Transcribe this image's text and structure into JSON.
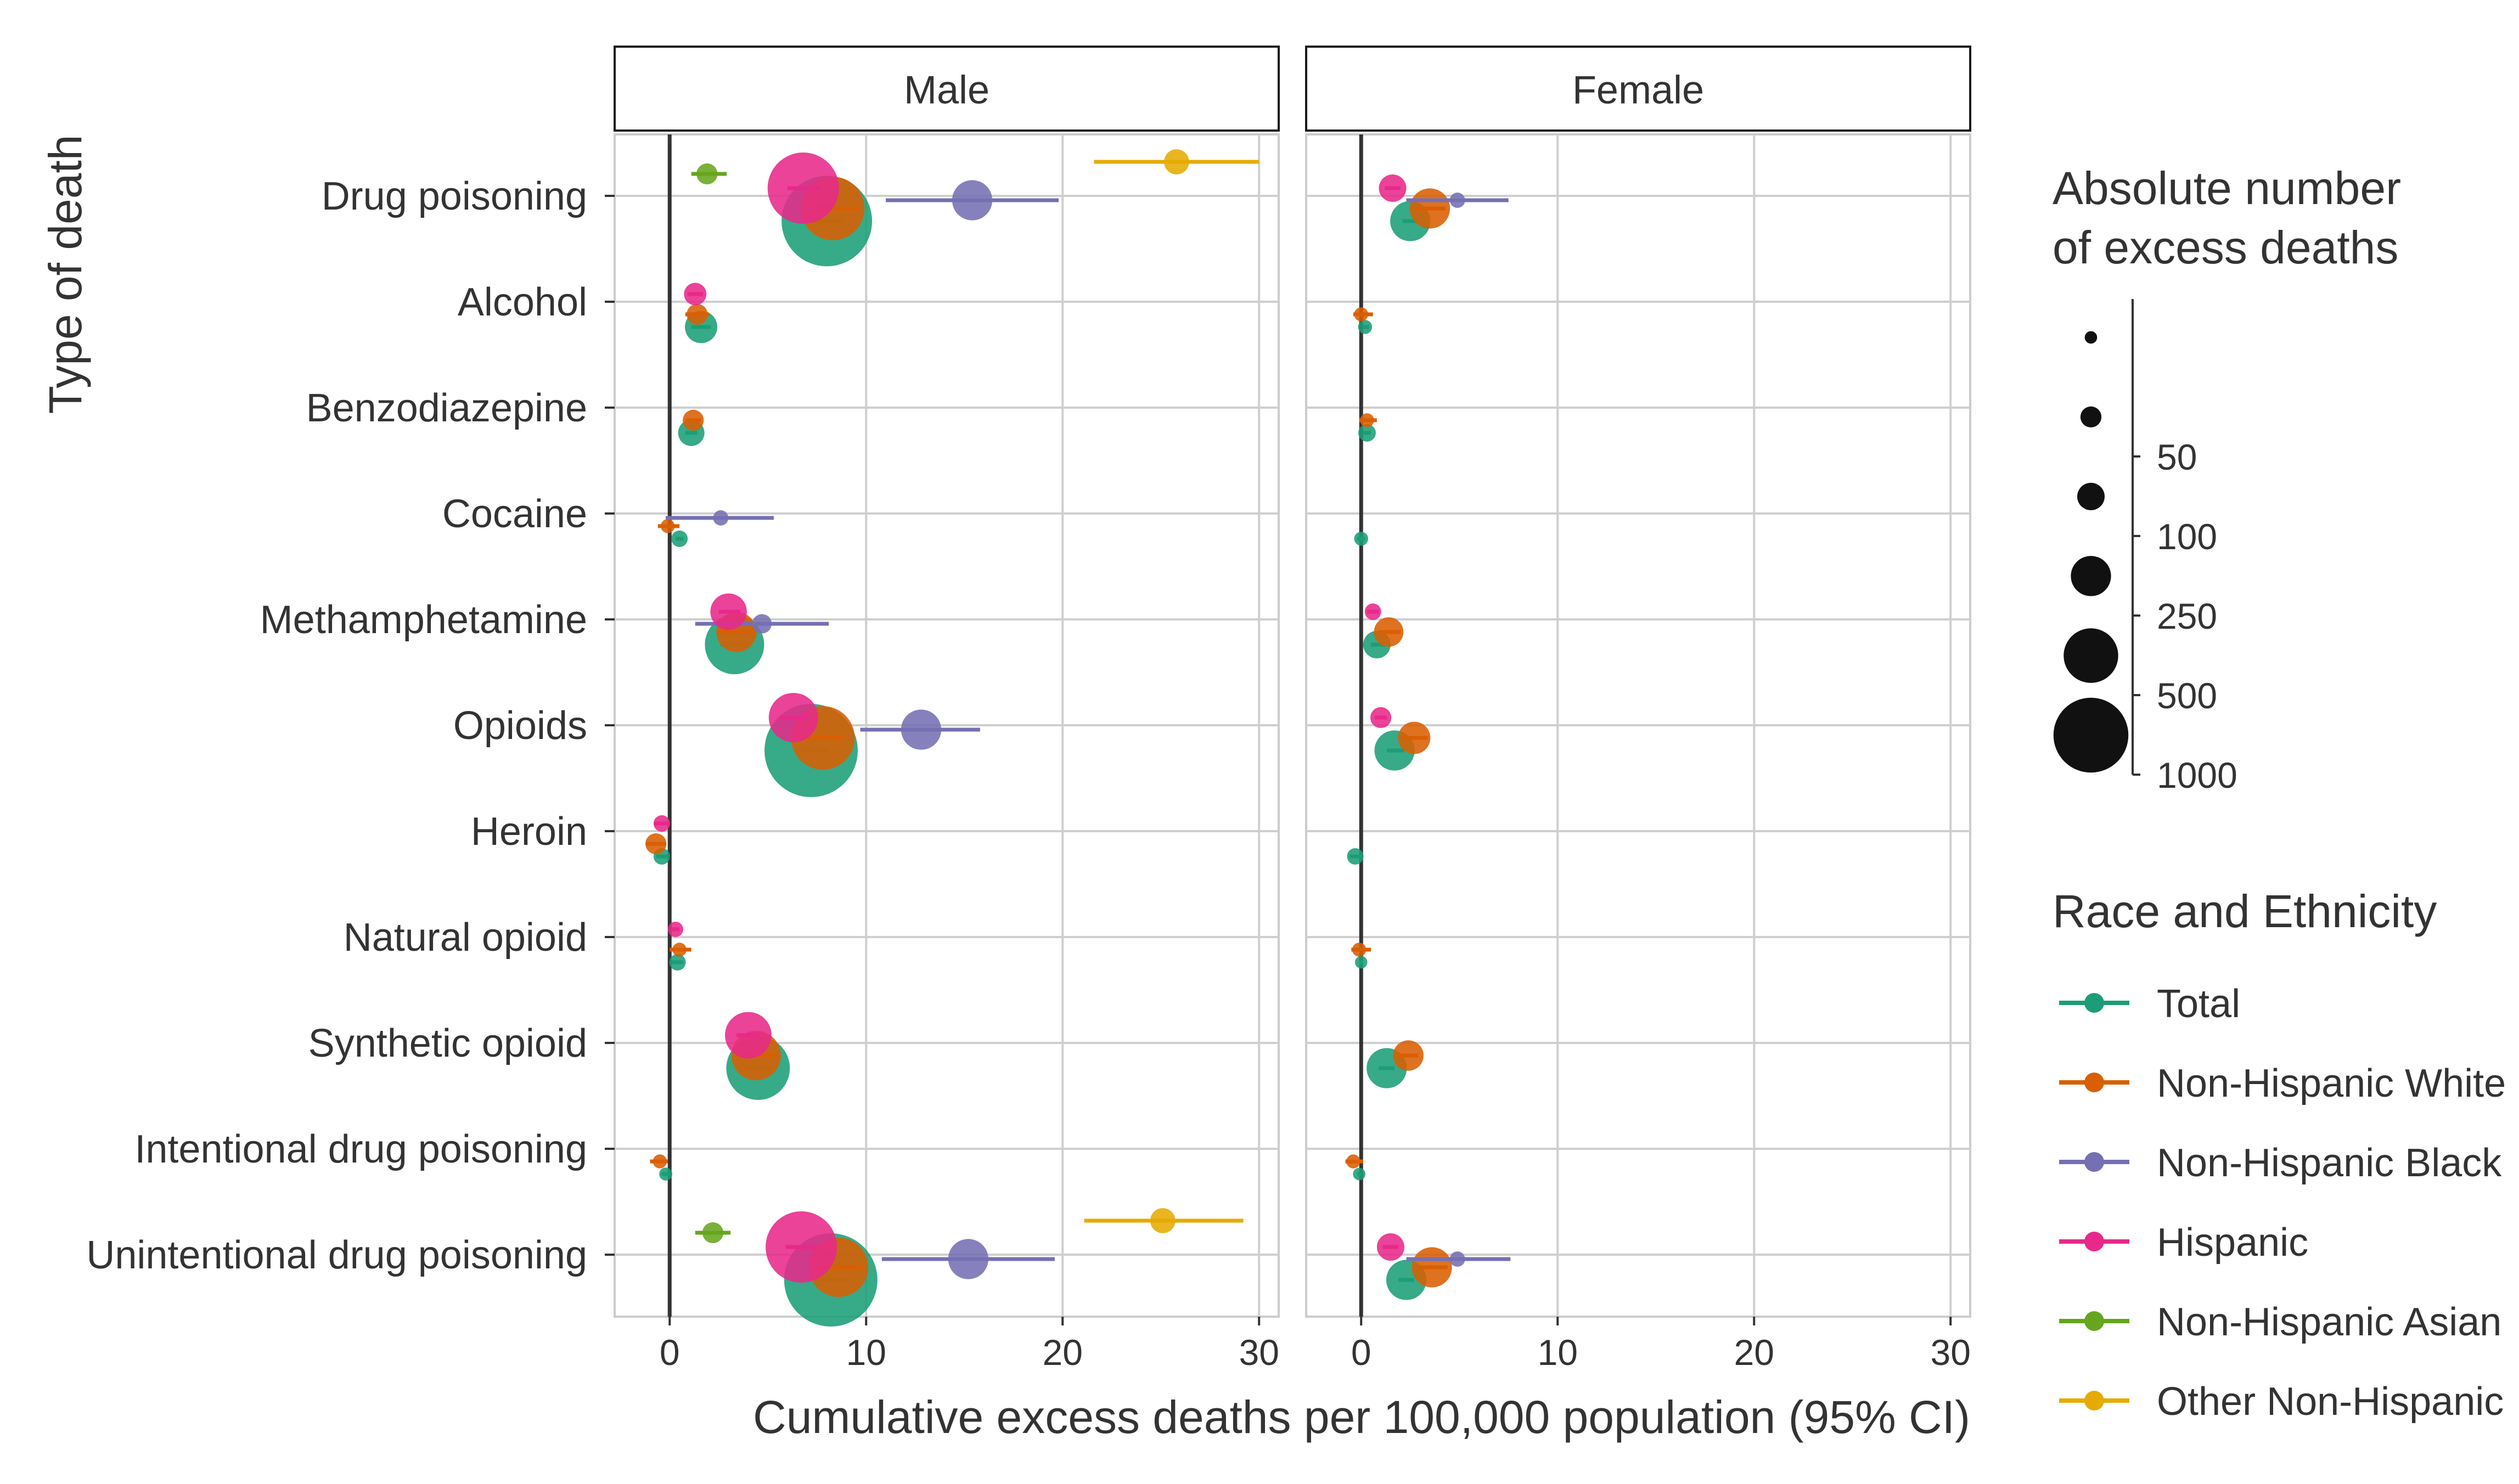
{
  "chart_data": {
    "type": "scatter",
    "y_axis_title": "Type of death",
    "x_axis_title": "Cumulative excess deaths per 100,000 population (95% CI)",
    "xlim": [
      -2.8,
      31
    ],
    "x_ticks": [
      0,
      10,
      20,
      30
    ],
    "grid": true,
    "legend_placement": "right",
    "categories": [
      "Drug poisoning",
      "Alcohol",
      "Benzodiazepine",
      "Cocaine",
      "Methamphetamine",
      "Opioids",
      "Heroin",
      "Natural opioid",
      "Synthetic opioid",
      "Intentional drug poisoning",
      "Unintentional drug poisoning"
    ],
    "size_legend": {
      "title_lines": [
        "Absolute number",
        "of excess deaths"
      ],
      "breaks": [
        {
          "label": "",
          "value": 10
        },
        {
          "label": "50",
          "value": 50
        },
        {
          "label": "100",
          "value": 100
        },
        {
          "label": "250",
          "value": 250
        },
        {
          "label": "500",
          "value": 500
        },
        {
          "label": "1000",
          "value": 1000
        }
      ]
    },
    "color_legend": {
      "title": "Race and Ethnicity",
      "groups": [
        {
          "name": "Total",
          "color": "#1b9e77"
        },
        {
          "name": "Non-Hispanic White",
          "color": "#d95f02"
        },
        {
          "name": "Non-Hispanic Black",
          "color": "#7570b3"
        },
        {
          "name": "Hispanic",
          "color": "#e7298a"
        },
        {
          "name": "Non-Hispanic Asian",
          "color": "#66a61e"
        },
        {
          "name": "Other Non-Hispanic",
          "color": "#e6ab02"
        }
      ]
    },
    "panels": [
      {
        "label": "Male",
        "series": [
          {
            "group": "Total",
            "points": [
              {
                "category": "Drug poisoning",
                "x": 8.0,
                "lo": 7.2,
                "hi": 8.8,
                "n": 1500
              },
              {
                "category": "Alcohol",
                "x": 1.6,
                "lo": 1.1,
                "hi": 2.1,
                "n": 150
              },
              {
                "category": "Benzodiazepine",
                "x": 1.1,
                "lo": 0.8,
                "hi": 1.4,
                "n": 90
              },
              {
                "category": "Cocaine",
                "x": 0.5,
                "lo": 0.3,
                "hi": 0.7,
                "n": 25
              },
              {
                "category": "Methamphetamine",
                "x": 3.3,
                "lo": 2.6,
                "hi": 4.0,
                "n": 600
              },
              {
                "category": "Opioids",
                "x": 7.2,
                "lo": 6.4,
                "hi": 8.0,
                "n": 1600
              },
              {
                "category": "Heroin",
                "x": -0.4,
                "lo": -0.7,
                "hi": -0.1,
                "n": 25
              },
              {
                "category": "Natural opioid",
                "x": 0.4,
                "lo": 0.1,
                "hi": 0.7,
                "n": 25
              },
              {
                "category": "Synthetic opioid",
                "x": 4.5,
                "lo": 3.8,
                "hi": 5.2,
                "n": 700
              },
              {
                "category": "Intentional drug poisoning",
                "x": -0.2,
                "lo": -0.4,
                "hi": 0.0,
                "n": 12
              },
              {
                "category": "Unintentional drug poisoning",
                "x": 8.2,
                "lo": 7.4,
                "hi": 9.0,
                "n": 1600
              }
            ]
          },
          {
            "group": "Non-Hispanic White",
            "points": [
              {
                "category": "Drug poisoning",
                "x": 8.3,
                "lo": 7.2,
                "hi": 9.6,
                "n": 700
              },
              {
                "category": "Alcohol",
                "x": 1.4,
                "lo": 0.8,
                "hi": 2.0,
                "n": 50
              },
              {
                "category": "Benzodiazepine",
                "x": 1.2,
                "lo": 0.8,
                "hi": 1.6,
                "n": 50
              },
              {
                "category": "Cocaine",
                "x": -0.1,
                "lo": -0.6,
                "hi": 0.5,
                "n": 15
              },
              {
                "category": "Methamphetamine",
                "x": 3.4,
                "lo": 2.4,
                "hi": 4.4,
                "n": 250
              },
              {
                "category": "Opioids",
                "x": 7.8,
                "lo": 6.8,
                "hi": 8.9,
                "n": 700
              },
              {
                "category": "Heroin",
                "x": -0.7,
                "lo": -1.2,
                "hi": -0.2,
                "n": 50
              },
              {
                "category": "Natural opioid",
                "x": 0.5,
                "lo": 0.0,
                "hi": 1.1,
                "n": 15
              },
              {
                "category": "Synthetic opioid",
                "x": 4.4,
                "lo": 3.4,
                "hi": 5.5,
                "n": 400
              },
              {
                "category": "Intentional drug poisoning",
                "x": -0.5,
                "lo": -1.0,
                "hi": -0.1,
                "n": 15
              },
              {
                "category": "Unintentional drug poisoning",
                "x": 8.6,
                "lo": 7.5,
                "hi": 9.8,
                "n": 600
              }
            ]
          },
          {
            "group": "Non-Hispanic Black",
            "points": [
              {
                "category": "Drug poisoning",
                "x": 15.4,
                "lo": 11.0,
                "hi": 19.8,
                "n": 250
              },
              {
                "category": "Cocaine",
                "x": 2.6,
                "lo": -0.2,
                "hi": 5.3,
                "n": 20
              },
              {
                "category": "Methamphetamine",
                "x": 4.7,
                "lo": 1.3,
                "hi": 8.1,
                "n": 40
              },
              {
                "category": "Opioids",
                "x": 12.8,
                "lo": 9.7,
                "hi": 15.8,
                "n": 250
              },
              {
                "category": "Unintentional drug poisoning",
                "x": 15.2,
                "lo": 10.8,
                "hi": 19.6,
                "n": 250
              }
            ]
          },
          {
            "group": "Hispanic",
            "points": [
              {
                "category": "Drug poisoning",
                "x": 6.8,
                "lo": 6.0,
                "hi": 7.6,
                "n": 900
              },
              {
                "category": "Alcohol",
                "x": 1.3,
                "lo": 0.9,
                "hi": 1.7,
                "n": 60
              },
              {
                "category": "Methamphetamine",
                "x": 3.0,
                "lo": 2.5,
                "hi": 3.6,
                "n": 200
              },
              {
                "category": "Opioids",
                "x": 6.3,
                "lo": 5.6,
                "hi": 7.0,
                "n": 400
              },
              {
                "category": "Heroin",
                "x": -0.4,
                "lo": -0.8,
                "hi": 0.0,
                "n": 25
              },
              {
                "category": "Natural opioid",
                "x": 0.3,
                "lo": 0.1,
                "hi": 0.5,
                "n": 20
              },
              {
                "category": "Synthetic opioid",
                "x": 4.0,
                "lo": 3.4,
                "hi": 4.6,
                "n": 350
              },
              {
                "category": "Unintentional drug poisoning",
                "x": 6.7,
                "lo": 5.9,
                "hi": 7.5,
                "n": 900
              }
            ]
          },
          {
            "group": "Non-Hispanic Asian",
            "points": [
              {
                "category": "Drug poisoning",
                "x": 1.9,
                "lo": 1.1,
                "hi": 2.9,
                "n": 50
              },
              {
                "category": "Unintentional drug poisoning",
                "x": 2.2,
                "lo": 1.3,
                "hi": 3.1,
                "n": 50
              }
            ]
          },
          {
            "group": "Other Non-Hispanic",
            "points": [
              {
                "category": "Drug poisoning",
                "x": 25.8,
                "lo": 21.6,
                "hi": 30.0,
                "n": 80
              },
              {
                "category": "Unintentional drug poisoning",
                "x": 25.1,
                "lo": 21.1,
                "hi": 29.2,
                "n": 80
              }
            ]
          }
        ]
      },
      {
        "label": "Female",
        "series": [
          {
            "group": "Total",
            "points": [
              {
                "category": "Drug poisoning",
                "x": 2.5,
                "lo": 2.1,
                "hi": 2.9,
                "n": 250
              },
              {
                "category": "Alcohol",
                "x": 0.2,
                "lo": 0.1,
                "hi": 0.4,
                "n": 15
              },
              {
                "category": "Benzodiazepine",
                "x": 0.3,
                "lo": 0.1,
                "hi": 0.5,
                "n": 30
              },
              {
                "category": "Cocaine",
                "x": 0.0,
                "lo": -0.2,
                "hi": 0.2,
                "n": 15
              },
              {
                "category": "Methamphetamine",
                "x": 0.8,
                "lo": 0.5,
                "hi": 1.2,
                "n": 100
              },
              {
                "category": "Opioids",
                "x": 1.7,
                "lo": 1.3,
                "hi": 2.2,
                "n": 250
              },
              {
                "category": "Heroin",
                "x": -0.3,
                "lo": -0.6,
                "hi": 0.0,
                "n": 25
              },
              {
                "category": "Natural opioid",
                "x": 0.0,
                "lo": -0.1,
                "hi": 0.1,
                "n": 10
              },
              {
                "category": "Synthetic opioid",
                "x": 1.3,
                "lo": 0.9,
                "hi": 1.7,
                "n": 250
              },
              {
                "category": "Intentional drug poisoning",
                "x": -0.1,
                "lo": -0.2,
                "hi": 0.0,
                "n": 10
              },
              {
                "category": "Unintentional drug poisoning",
                "x": 2.3,
                "lo": 1.9,
                "hi": 2.7,
                "n": 250
              }
            ]
          },
          {
            "group": "Non-Hispanic White",
            "points": [
              {
                "category": "Drug poisoning",
                "x": 3.5,
                "lo": 2.8,
                "hi": 4.3,
                "n": 250
              },
              {
                "category": "Alcohol",
                "x": 0.0,
                "lo": -0.4,
                "hi": 0.6,
                "n": 15
              },
              {
                "category": "Benzodiazepine",
                "x": 0.3,
                "lo": -0.1,
                "hi": 0.8,
                "n": 15
              },
              {
                "category": "Methamphetamine",
                "x": 1.4,
                "lo": 0.9,
                "hi": 2.0,
                "n": 120
              },
              {
                "category": "Opioids",
                "x": 2.7,
                "lo": 2.1,
                "hi": 3.4,
                "n": 150
              },
              {
                "category": "Natural opioid",
                "x": -0.1,
                "lo": -0.5,
                "hi": 0.5,
                "n": 15
              },
              {
                "category": "Synthetic opioid",
                "x": 2.4,
                "lo": 1.9,
                "hi": 2.9,
                "n": 130
              },
              {
                "category": "Intentional drug poisoning",
                "x": -0.4,
                "lo": -0.8,
                "hi": 0.1,
                "n": 15
              },
              {
                "category": "Unintentional drug poisoning",
                "x": 3.6,
                "lo": 2.9,
                "hi": 4.4,
                "n": 250
              }
            ]
          },
          {
            "group": "Non-Hispanic Black",
            "points": [
              {
                "category": "Drug poisoning",
                "x": 4.9,
                "lo": 2.3,
                "hi": 7.5,
                "n": 20
              },
              {
                "category": "Unintentional drug poisoning",
                "x": 4.9,
                "lo": 2.3,
                "hi": 7.6,
                "n": 20
              }
            ]
          },
          {
            "group": "Hispanic",
            "points": [
              {
                "category": "Drug poisoning",
                "x": 1.6,
                "lo": 1.2,
                "hi": 2.0,
                "n": 100
              },
              {
                "category": "Methamphetamine",
                "x": 0.6,
                "lo": 0.3,
                "hi": 0.9,
                "n": 25
              },
              {
                "category": "Opioids",
                "x": 1.0,
                "lo": 0.7,
                "hi": 1.3,
                "n": 50
              },
              {
                "category": "Unintentional drug poisoning",
                "x": 1.5,
                "lo": 1.1,
                "hi": 1.9,
                "n": 100
              }
            ]
          }
        ]
      }
    ]
  }
}
